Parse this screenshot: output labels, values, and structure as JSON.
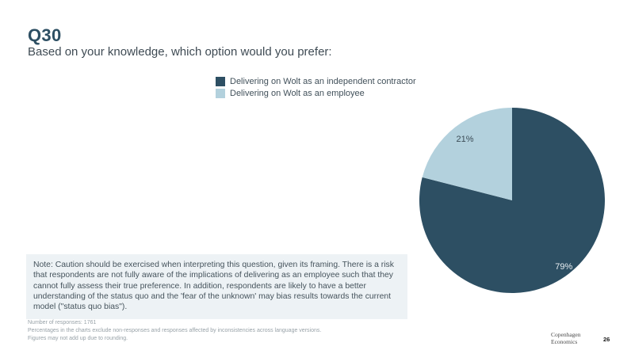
{
  "slide": {
    "title": "Q30",
    "subtitle": "Based on your knowledge, which option would you prefer:",
    "note": "Note: Caution should be exercised when interpreting this question, given its framing. There is a risk that respondents are not fully aware of the implications of delivering as an employee such that they cannot fully assess their true preference. In addition, respondents are likely to have a better understanding of the status quo and the 'fear of the unknown' may bias results towards the current model (\"status quo bias\").",
    "footnotes": [
      "Number of responses: 1761",
      "Percentages in the charts exclude non-responses and responses affected by inconsistencies across language versions.",
      "Figures may not add up due to rounding."
    ],
    "logo_line1": "Copenhagen",
    "logo_line2": "Economics",
    "page_number": "26"
  },
  "chart_data": {
    "type": "pie",
    "title": "",
    "categories": [
      "Delivering on Wolt as an independent contractor",
      "Delivering on Wolt as an employee"
    ],
    "values": [
      79,
      21
    ],
    "data_labels": [
      "79%",
      "21%"
    ],
    "colors": [
      "#2d4f63",
      "#b3d1dd"
    ],
    "data_label_colors": [
      "#e8eef2",
      "#3c4c56"
    ],
    "start_angle_deg": 0,
    "direction": "clockwise",
    "legend_position": "above-chart"
  }
}
